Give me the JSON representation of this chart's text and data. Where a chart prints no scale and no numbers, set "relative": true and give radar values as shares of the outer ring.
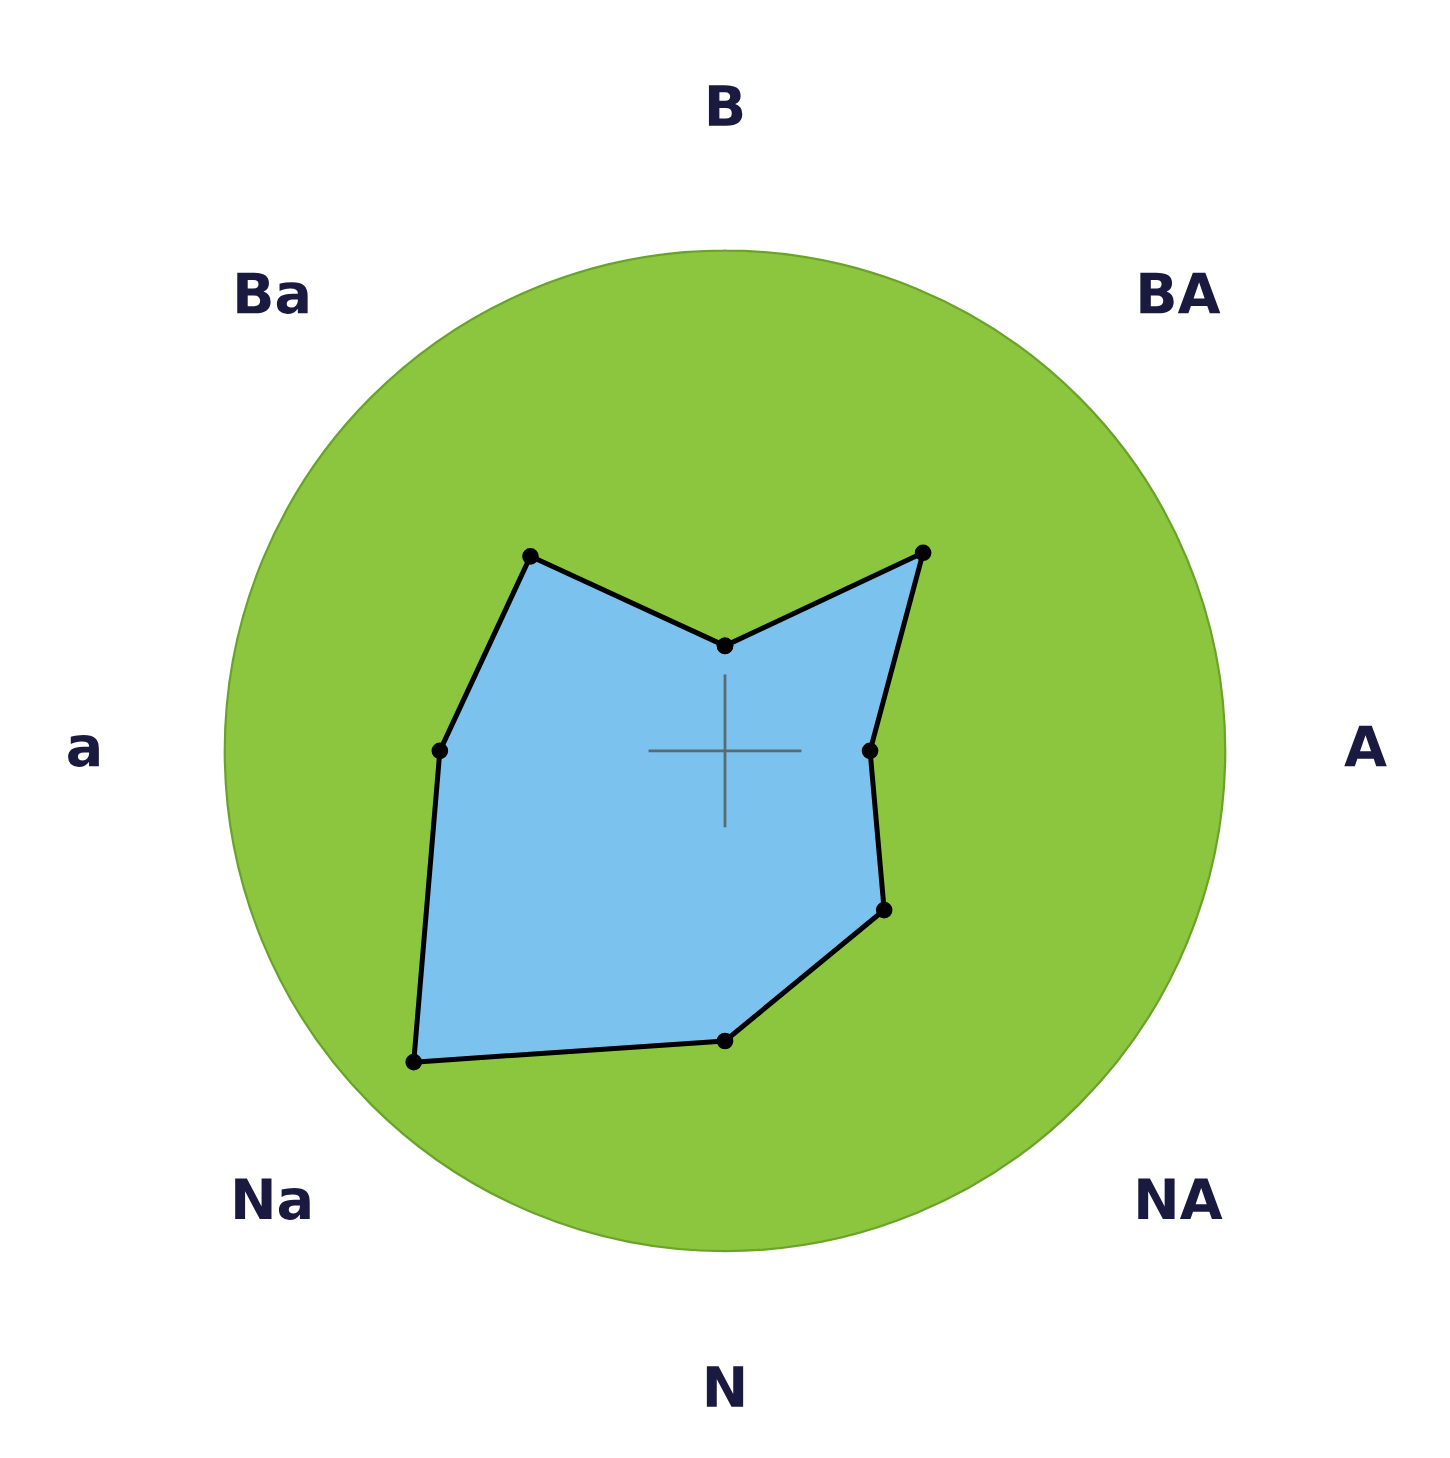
{
  "chart_data": {
    "type": "radar",
    "relative": true,
    "categories": [
      "B",
      "BA",
      "A",
      "NA",
      "N",
      "Na",
      "a",
      "Ba"
    ],
    "series": [
      {
        "color": "#7cc2ee",
        "values": [
          0.21,
          0.56,
          0.29,
          0.45,
          0.58,
          0.88,
          0.57,
          0.55
        ]
      }
    ],
    "marker": "circle",
    "line_style": "solid",
    "grid": false,
    "legend": false
  }
}
